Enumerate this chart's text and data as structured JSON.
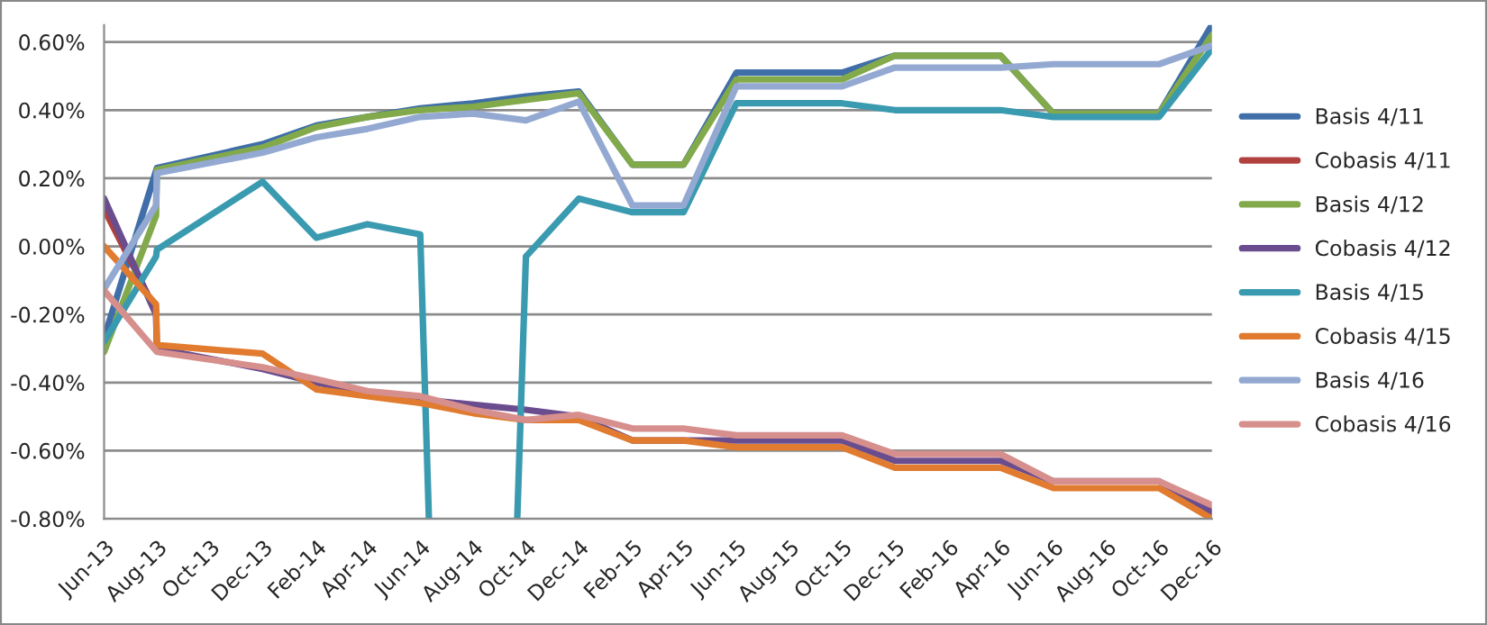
{
  "chart_data": {
    "type": "line",
    "x": [
      "2013-06-01",
      "2013-07-31",
      "2013-08-01",
      "2013-12-01",
      "2014-02-01",
      "2014-04-01",
      "2014-06-01",
      "2014-08-01",
      "2014-10-01",
      "2014-12-01",
      "2015-02-01",
      "2015-04-01",
      "2015-06-01",
      "2015-10-01",
      "2015-12-01",
      "2016-04-01",
      "2016-06-01",
      "2016-10-01",
      "2016-12-01"
    ],
    "series": [
      {
        "name": "Basis 4/11",
        "color": "#3f6ea8",
        "x": [
          "2013-06-01",
          "2013-08-01",
          "2013-12-01",
          "2014-02-01",
          "2014-04-01",
          "2014-06-01",
          "2014-08-01",
          "2014-10-01",
          "2014-12-01",
          "2015-02-01",
          "2015-04-01",
          "2015-06-01",
          "2015-10-01",
          "2015-12-01",
          "2016-04-01",
          "2016-06-01",
          "2016-10-01",
          "2016-12-01"
        ],
        "values": [
          -0.27,
          0.23,
          0.3,
          0.355,
          0.38,
          0.405,
          0.42,
          0.44,
          0.455,
          0.24,
          0.24,
          0.51,
          0.51,
          0.56,
          0.56,
          0.39,
          0.39,
          0.65
        ]
      },
      {
        "name": "Cobasis 4/11",
        "color": "#b0413e",
        "values": [
          0.11,
          -0.19,
          null,
          null,
          null,
          null,
          null,
          null,
          null,
          null,
          null,
          null,
          null,
          null,
          null,
          null,
          null,
          null,
          null
        ]
      },
      {
        "name": "Basis 4/12",
        "color": "#82a94a",
        "values": [
          -0.31,
          0.09,
          0.225,
          0.29,
          0.35,
          0.38,
          0.4,
          0.41,
          0.43,
          0.45,
          0.24,
          0.24,
          0.49,
          0.49,
          0.56,
          0.56,
          0.39,
          0.39,
          0.62
        ]
      },
      {
        "name": "Cobasis 4/12",
        "color": "#6a4d8f",
        "values": [
          0.14,
          -0.2,
          -0.3,
          -0.36,
          -0.4,
          -0.43,
          -0.45,
          -0.465,
          -0.48,
          -0.5,
          -0.57,
          -0.57,
          -0.57,
          -0.57,
          -0.63,
          -0.63,
          -0.69,
          -0.69,
          -0.78
        ]
      },
      {
        "name": "Basis 4/15",
        "color": "#3a9ab0",
        "x": [
          "2013-06-01",
          "2013-07-31",
          "2013-08-01",
          "2013-12-01",
          "2014-02-01",
          "2014-04-01",
          "2014-06-01",
          "2014-06-11",
          "2014-08-01",
          "2014-09-21",
          "2014-10-01",
          "2014-12-01",
          "2015-02-01",
          "2015-04-01",
          "2015-06-01",
          "2015-10-01",
          "2015-12-01",
          "2016-04-01",
          "2016-06-01",
          "2016-10-01",
          "2016-12-01"
        ],
        "values": [
          -0.28,
          -0.03,
          -0.01,
          0.19,
          0.025,
          0.065,
          0.035,
          -0.8,
          null,
          -0.8,
          -0.03,
          0.14,
          0.1,
          0.1,
          0.42,
          0.42,
          0.4,
          0.4,
          0.38,
          0.38,
          0.58
        ]
      },
      {
        "name": "Cobasis 4/15",
        "color": "#e07b2f",
        "values": [
          0.0,
          -0.17,
          -0.29,
          -0.315,
          -0.42,
          -0.44,
          -0.46,
          -0.49,
          -0.51,
          -0.51,
          -0.57,
          -0.57,
          -0.59,
          -0.59,
          -0.65,
          -0.65,
          -0.71,
          -0.71,
          -0.8
        ]
      },
      {
        "name": "Basis 4/16",
        "color": "#93a9d2",
        "values": [
          -0.125,
          0.12,
          0.215,
          0.275,
          0.32,
          0.345,
          0.38,
          0.39,
          0.37,
          0.425,
          0.12,
          0.12,
          0.47,
          0.47,
          0.525,
          0.525,
          0.535,
          0.535,
          0.59
        ]
      },
      {
        "name": "Cobasis 4/16",
        "color": "#d68f8c",
        "x": [
          "2013-06-01",
          "2013-08-01",
          "2013-12-01",
          "2014-02-01",
          "2014-04-01",
          "2014-06-01",
          "2014-08-01",
          "2014-10-01",
          "2014-12-01",
          "2015-02-01",
          "2015-04-01",
          "2015-06-01",
          "2015-10-01",
          "2015-12-01",
          "2016-04-01",
          "2016-06-01",
          "2016-10-01",
          "2016-12-01"
        ],
        "values": [
          -0.13,
          -0.31,
          -0.355,
          -0.39,
          -0.425,
          -0.44,
          -0.48,
          -0.51,
          -0.495,
          -0.535,
          -0.535,
          -0.555,
          -0.555,
          -0.61,
          -0.61,
          -0.69,
          -0.69,
          -0.76
        ]
      }
    ],
    "xlim": [
      "2013-06-01",
      "2016-12-01"
    ],
    "xticks": [
      {
        "value": "2013-06-01",
        "label": "Jun-13"
      },
      {
        "value": "2013-08-01",
        "label": "Aug-13"
      },
      {
        "value": "2013-10-01",
        "label": "Oct-13"
      },
      {
        "value": "2013-12-01",
        "label": "Dec-13"
      },
      {
        "value": "2014-02-01",
        "label": "Feb-14"
      },
      {
        "value": "2014-04-01",
        "label": "Apr-14"
      },
      {
        "value": "2014-06-01",
        "label": "Jun-14"
      },
      {
        "value": "2014-08-01",
        "label": "Aug-14"
      },
      {
        "value": "2014-10-01",
        "label": "Oct-14"
      },
      {
        "value": "2014-12-01",
        "label": "Dec-14"
      },
      {
        "value": "2015-02-01",
        "label": "Feb-15"
      },
      {
        "value": "2015-04-01",
        "label": "Apr-15"
      },
      {
        "value": "2015-06-01",
        "label": "Jun-15"
      },
      {
        "value": "2015-08-01",
        "label": "Aug-15"
      },
      {
        "value": "2015-10-01",
        "label": "Oct-15"
      },
      {
        "value": "2015-12-01",
        "label": "Dec-15"
      },
      {
        "value": "2016-02-01",
        "label": "Feb-16"
      },
      {
        "value": "2016-04-01",
        "label": "Apr-16"
      },
      {
        "value": "2016-06-01",
        "label": "Jun-16"
      },
      {
        "value": "2016-08-01",
        "label": "Aug-16"
      },
      {
        "value": "2016-10-01",
        "label": "Oct-16"
      },
      {
        "value": "2016-12-01",
        "label": "Dec-16"
      }
    ],
    "ylim": [
      -0.8,
      0.65
    ],
    "yticks": [
      {
        "value": -0.8,
        "label": "-0.80%"
      },
      {
        "value": -0.6,
        "label": "-0.60%"
      },
      {
        "value": -0.4,
        "label": "-0.40%"
      },
      {
        "value": -0.2,
        "label": "-0.20%"
      },
      {
        "value": 0.0,
        "label": "0.00%"
      },
      {
        "value": 0.2,
        "label": "0.20%"
      },
      {
        "value": 0.4,
        "label": "0.40%"
      },
      {
        "value": 0.6,
        "label": "0.60%"
      }
    ],
    "grid": "y",
    "legend": "right",
    "marker": "none",
    "line_style": "solid"
  }
}
